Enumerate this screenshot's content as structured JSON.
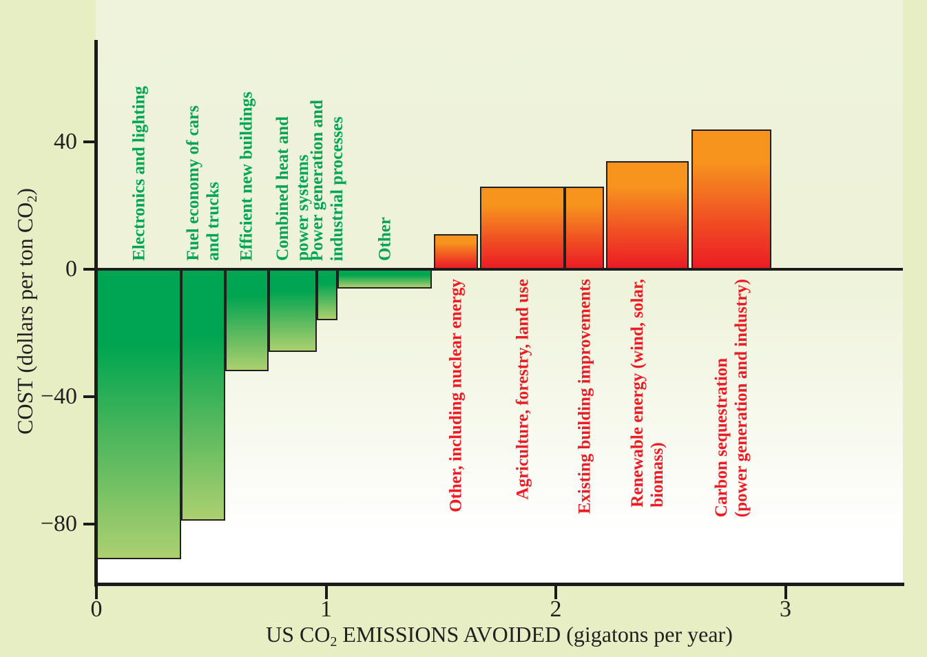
{
  "figure": {
    "background_color": "#E7EEC4",
    "plot_bg_top_color": "#EFF3DC",
    "plot_bg_bottom_color": "#FFFFFF",
    "axis_color": "#1A1A1A",
    "text_color": "#231F20"
  },
  "chart_data": {
    "type": "bar",
    "subtype": "variable-width marginal abatement cost curve (step bars)",
    "title": "",
    "xlabel_parts": {
      "prefix": "US CO",
      "sub": "2",
      "suffix": " EMISSIONS AVOIDED (gigatons per year)"
    },
    "ylabel_parts": {
      "prefix": "COST (dollars per ton CO",
      "sub": "2",
      "suffix": ")"
    },
    "xlim": [
      0,
      3.5
    ],
    "ylim": [
      -99,
      72
    ],
    "grid": "off",
    "x_ticks": {
      "values": [
        0,
        1,
        2,
        3
      ],
      "labels": [
        "0",
        "1",
        "2",
        "3"
      ]
    },
    "y_ticks": {
      "values": [
        40,
        0,
        -40,
        -80
      ],
      "labels": [
        "40",
        "0",
        "−40",
        "−80"
      ]
    },
    "bars": [
      {
        "label": "Electronics and lighting",
        "label_lines": [
          "Electronics and lighting"
        ],
        "x_start": 0.0,
        "x_end": 0.37,
        "cost": -91,
        "group": "savings"
      },
      {
        "label": "Fuel economy of cars and trucks",
        "label_lines": [
          "Fuel economy of cars",
          "and trucks"
        ],
        "x_start": 0.37,
        "x_end": 0.56,
        "cost": -79,
        "group": "savings"
      },
      {
        "label": "Efficient new buildings",
        "label_lines": [
          "Efficient new buildings"
        ],
        "x_start": 0.56,
        "x_end": 0.75,
        "cost": -32,
        "group": "savings"
      },
      {
        "label": "Combined heat and power systems",
        "label_lines": [
          "Combined heat and",
          "power systems"
        ],
        "x_start": 0.75,
        "x_end": 0.96,
        "cost": -26,
        "group": "savings"
      },
      {
        "label": "Power generation and industrial processes",
        "label_lines": [
          "Power generation and",
          "industrial processes"
        ],
        "x_start": 0.96,
        "x_end": 1.05,
        "cost": -16,
        "group": "savings"
      },
      {
        "label": "Other",
        "label_lines": [
          "Other"
        ],
        "x_start": 1.05,
        "x_end": 1.46,
        "cost": -6,
        "group": "savings"
      },
      {
        "label": "Other, including nuclear energy",
        "label_lines": [
          "Other, including nuclear energy"
        ],
        "x_start": 1.47,
        "x_end": 1.66,
        "cost": 11,
        "group": "cost"
      },
      {
        "label": "Agriculture, forestry, land use",
        "label_lines": [
          "Agriculture, forestry, land use"
        ],
        "x_start": 1.67,
        "x_end": 2.04,
        "cost": 26,
        "group": "cost"
      },
      {
        "label": "Existing building improvements",
        "label_lines": [
          "Existing building improvements"
        ],
        "x_start": 2.04,
        "x_end": 2.21,
        "cost": 26,
        "group": "cost"
      },
      {
        "label": "Renewable energy (wind, solar, biomass)",
        "label_lines": [
          "Renewable energy (wind, solar,",
          "biomass)"
        ],
        "x_start": 2.22,
        "x_end": 2.58,
        "cost": 34,
        "group": "cost"
      },
      {
        "label": "Carbon sequestration (power generation and industry)",
        "label_lines": [
          "Carbon sequestration",
          "(power generation and industry)"
        ],
        "x_start": 2.59,
        "x_end": 2.94,
        "cost": 44,
        "group": "cost"
      }
    ],
    "colors": {
      "savings_text": "#00A551",
      "cost_text": "#ED1C24",
      "savings_bar_top": "#00A551",
      "savings_bar_bottom": "#ACD06F",
      "cost_bar_top": "#F7941E",
      "cost_bar_bottom": "#EC1C24",
      "bar_border": "#231F20"
    }
  }
}
